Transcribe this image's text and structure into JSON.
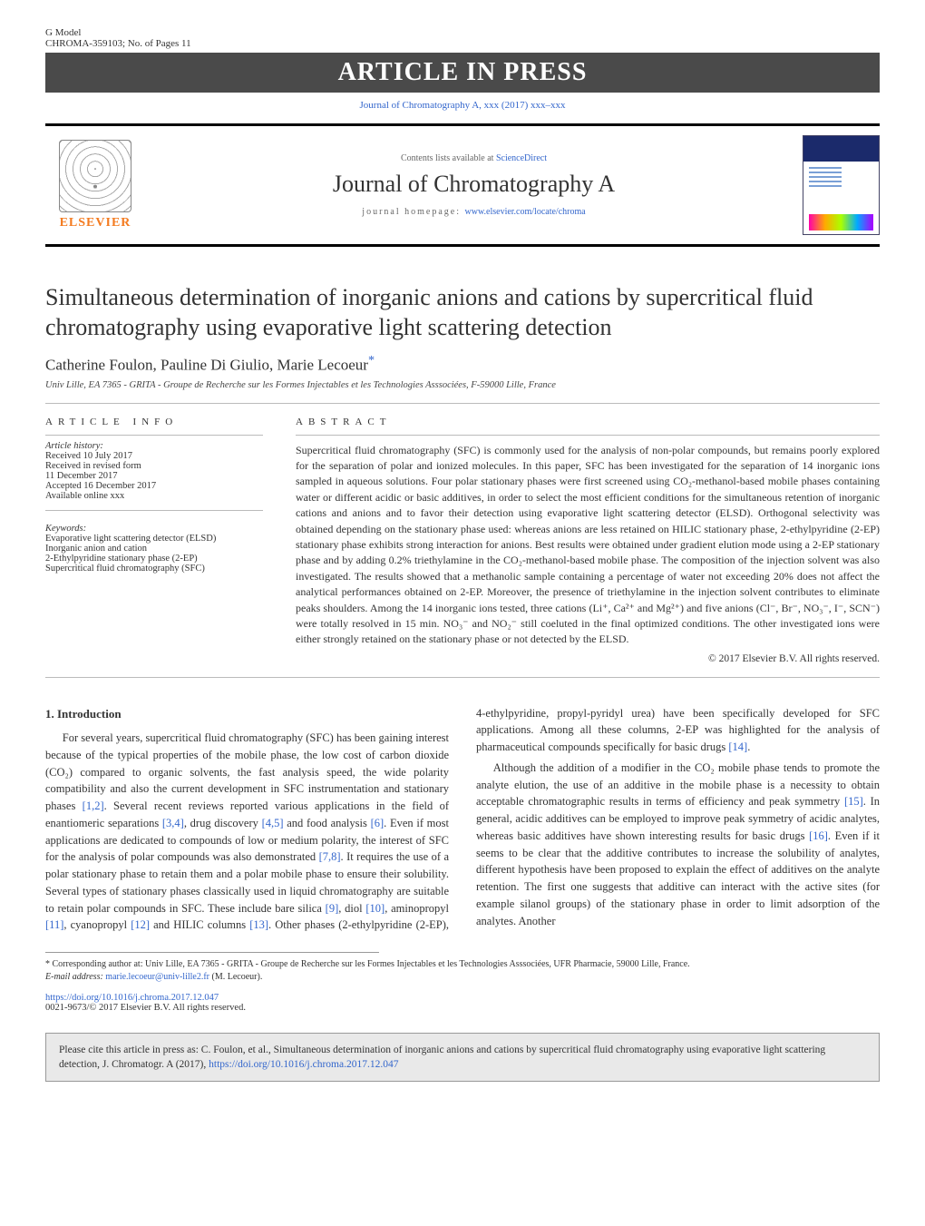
{
  "header": {
    "gmodel": "G Model",
    "ref": "CHROMA-359103;   No. of Pages 11",
    "banner": "ARTICLE IN PRESS",
    "linkline": "Journal of Chromatography A, xxx (2017) xxx–xxx",
    "contents_prefix": "Contents lists available at ",
    "contents_link": "ScienceDirect",
    "journal_title": "Journal of Chromatography A",
    "homepage_label": "journal homepage: ",
    "homepage_url": "www.elsevier.com/locate/chroma",
    "elsevier_brand": "ELSEVIER"
  },
  "article": {
    "title": "Simultaneous determination of inorganic anions and cations by supercritical fluid chromatography using evaporative light scattering detection",
    "authors": "Catherine Foulon, Pauline Di Giulio, Marie Lecoeur",
    "corr_marker": "*",
    "affiliation": "Univ Lille, EA 7365 - GRITA - Groupe de Recherche sur les Formes Injectables et les Technologies Asssociées, F-59000 Lille, France"
  },
  "info": {
    "heading": "article info",
    "history_label": "Article history:",
    "received": "Received 10 July 2017",
    "revised1": "Received in revised form",
    "revised2": "11 December 2017",
    "accepted": "Accepted 16 December 2017",
    "online": "Available online xxx",
    "keywords_label": "Keywords:",
    "kw1": "Evaporative light scattering detector (ELSD)",
    "kw2": "Inorganic anion and cation",
    "kw3": "2-Ethylpyridine stationary phase (2-EP)",
    "kw4": "Supercritical fluid chromatography (SFC)"
  },
  "abstract": {
    "heading": "abstract",
    "text": "Supercritical fluid chromatography (SFC) is commonly used for the analysis of non-polar compounds, but remains poorly explored for the separation of polar and ionized molecules. In this paper, SFC has been investigated for the separation of 14 inorganic ions sampled in aqueous solutions. Four polar stationary phases were first screened using CO₂-methanol-based mobile phases containing water or different acidic or basic additives, in order to select the most efficient conditions for the simultaneous retention of inorganic cations and anions and to favor their detection using evaporative light scattering detector (ELSD). Orthogonal selectivity was obtained depending on the stationary phase used: whereas anions are less retained on HILIC stationary phase, 2-ethylpyridine (2-EP) stationary phase exhibits strong interaction for anions. Best results were obtained under gradient elution mode using a 2-EP stationary phase and by adding 0.2% triethylamine in the CO₂-methanol-based mobile phase. The composition of the injection solvent was also investigated. The results showed that a methanolic sample containing a percentage of water not exceeding 20% does not affect the analytical performances obtained on 2-EP. Moreover, the presence of triethylamine in the injection solvent contributes to eliminate peaks shoulders. Among the 14 inorganic ions tested, three cations (Li⁺, Ca²⁺ and Mg²⁺) and five anions (Cl⁻, Br⁻, NO₃⁻, I⁻, SCN⁻) were totally resolved in 15 min. NO₃⁻ and NO₂⁻ still coeluted in the final optimized conditions. The other investigated ions were either strongly retained on the stationary phase or not detected by the ELSD.",
    "copyright": "© 2017 Elsevier B.V. All rights reserved."
  },
  "intro": {
    "heading": "1.  Introduction",
    "p1a": "For several years, supercritical fluid chromatography (SFC) has been gaining interest because of the typical properties of the mobile phase, the low cost of carbon dioxide (CO₂) compared to organic solvents, the fast analysis speed, the wide polarity compatibility and also the current development in SFC instrumentation and stationary phases ",
    "r1": "[1,2]",
    "p1b": ". Several recent reviews reported various applications in the field of enantiomeric separations ",
    "r2": "[3,4]",
    "p1c": ", drug discovery ",
    "r3": "[4,5]",
    "p1d": " and food analysis ",
    "r4": "[6]",
    "p1e": ". Even if most applications are dedicated to compounds of low or medium polarity, the interest of SFC for the analysis of polar compounds was also demonstrated ",
    "r5": "[7,8]",
    "p1f": ". It requires the use of a polar stationary phase to retain them and a polar mobile phase to ensure their solubility. ",
    "p2a": "Several types of stationary phases classically used in liquid chromatography are suitable to retain polar compounds in SFC. These include bare silica ",
    "r6": "[9]",
    "p2b": ", diol ",
    "r7": "[10]",
    "p2c": ", aminopropyl ",
    "r8": "[11]",
    "p2d": ", cyanopropyl ",
    "r9": "[12]",
    "p2e": " and HILIC columns ",
    "r10": "[13]",
    "p2f": ". Other phases (2-ethylpyridine (2-EP), 4-ethylpyridine, propyl-pyridyl urea) have been specifically developed for SFC applications. Among all these columns, 2-EP was highlighted for the analysis of pharmaceutical compounds specifically for basic drugs ",
    "r11": "[14]",
    "p2g": ".",
    "p3a": "Although the addition of a modifier in the CO₂ mobile phase tends to promote the analyte elution, the use of an additive in the mobile phase is a necessity to obtain acceptable chromatographic results in terms of efficiency and peak symmetry ",
    "r12": "[15]",
    "p3b": ". In general, acidic additives can be employed to improve peak symmetry of acidic analytes, whereas basic additives have shown interesting results for basic drugs ",
    "r13": "[16]",
    "p3c": ". Even if it seems to be clear that the additive contributes to increase the solubility of analytes, different hypothesis have been proposed to explain the effect of additives on the analyte retention. The first one suggests that additive can interact with the active sites (for example silanol groups) of the stationary phase in order to limit adsorption of the analytes. Another"
  },
  "footnotes": {
    "corr": "* Corresponding author at: Univ Lille, EA 7365 - GRITA - Groupe de Recherche sur les Formes Injectables et les Technologies Asssociées, UFR Pharmacie, 59000 Lille, France.",
    "email_label": "E-mail address: ",
    "email": "marie.lecoeur@univ-lille2.fr",
    "email_suffix": " (M. Lecoeur).",
    "doi_url": "https://doi.org/10.1016/j.chroma.2017.12.047",
    "issn": "0021-9673/© 2017 Elsevier B.V. All rights reserved."
  },
  "citebox": {
    "text_a": "Please cite this article in press as: C. Foulon, et al., Simultaneous determination of inorganic anions and cations by supercritical fluid chromatography using evaporative light scattering detection, J. Chromatogr. A (2017), ",
    "link": "https://doi.org/10.1016/j.chroma.2017.12.047"
  },
  "colors": {
    "link": "#3366cc",
    "banner_bg": "#4a4a4a",
    "elsevier_orange": "#f47b20"
  }
}
